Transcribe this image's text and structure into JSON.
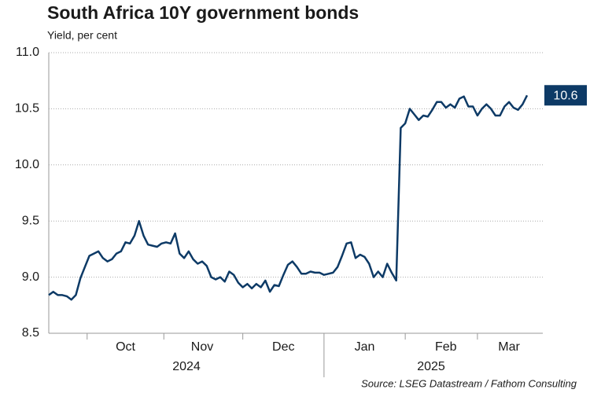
{
  "chart_data": {
    "type": "line",
    "title": "South Africa 10Y government bonds",
    "subtitle": "Yield, per cent",
    "source": "Source: LSEG Datastream / Fathom Consulting",
    "year_labels": [
      "2024",
      "2025"
    ],
    "categories": [
      null,
      null,
      null,
      null,
      null,
      null,
      null,
      null,
      null,
      null,
      null,
      null,
      null,
      null,
      null,
      null,
      null,
      "Oct",
      null,
      null,
      null,
      null,
      null,
      null,
      null,
      null,
      null,
      null,
      null,
      null,
      null,
      null,
      null,
      null,
      "Nov",
      null,
      null,
      null,
      null,
      null,
      null,
      null,
      null,
      null,
      null,
      null,
      null,
      null,
      null,
      null,
      null,
      null,
      "Dec",
      null,
      null,
      null,
      null,
      null,
      null,
      null,
      null,
      null,
      null,
      null,
      null,
      null,
      null,
      null,
      null,
      null,
      "Jan",
      null,
      null,
      null,
      null,
      null,
      null,
      null,
      null,
      null,
      null,
      null,
      null,
      null,
      null,
      null,
      null,
      null,
      "Feb",
      null,
      null,
      null,
      null,
      null,
      null,
      null,
      null,
      null,
      null,
      null,
      null,
      null,
      "Mar",
      null,
      null,
      null,
      null
    ],
    "series": [
      {
        "name": "South Africa 10Y",
        "color": "#0d3a66",
        "values": [
          8.84,
          8.87,
          8.84,
          8.84,
          8.83,
          8.8,
          8.84,
          8.99,
          9.09,
          9.19,
          9.21,
          9.23,
          9.17,
          9.14,
          9.16,
          9.21,
          9.23,
          9.31,
          9.3,
          9.37,
          9.5,
          9.37,
          9.29,
          9.28,
          9.27,
          9.3,
          9.31,
          9.3,
          9.39,
          9.21,
          9.17,
          9.23,
          9.16,
          9.12,
          9.14,
          9.1,
          9.0,
          8.98,
          9.0,
          8.96,
          9.05,
          9.02,
          8.95,
          8.91,
          8.94,
          8.9,
          8.94,
          8.91,
          8.97,
          8.87,
          8.93,
          8.92,
          9.02,
          9.11,
          9.14,
          9.09,
          9.03,
          9.03,
          9.05,
          9.04,
          9.04,
          9.02,
          9.03,
          9.04,
          9.09,
          9.19,
          9.3,
          9.31,
          9.17,
          9.2,
          9.18,
          9.12,
          9.0,
          9.05,
          9.0,
          9.12,
          9.04,
          8.97,
          10.33,
          10.37,
          10.5,
          10.45,
          10.4,
          10.44,
          10.43,
          10.49,
          10.56,
          10.56,
          10.51,
          10.54,
          10.51,
          10.59,
          10.61,
          10.52,
          10.52,
          10.44,
          10.5,
          10.54,
          10.5,
          10.44,
          10.44,
          10.52,
          10.56,
          10.51,
          10.49,
          10.54,
          10.62
        ],
        "value_labels": [
          null,
          null,
          null,
          null,
          null,
          null,
          null,
          null,
          null,
          null,
          null,
          null,
          null,
          null,
          null,
          null,
          null,
          null,
          null,
          null,
          null,
          null,
          null,
          null,
          null,
          null,
          null,
          null,
          null,
          null,
          null,
          null,
          null,
          null,
          null,
          null,
          null,
          null,
          null,
          null,
          null,
          null,
          null,
          null,
          null,
          null,
          null,
          null,
          null,
          null,
          null,
          null,
          null,
          null,
          null,
          null,
          null,
          null,
          null,
          null,
          null,
          null,
          null,
          null,
          null,
          null,
          null,
          null,
          null,
          null,
          null,
          null,
          null,
          null,
          null,
          null,
          null,
          null,
          null,
          null,
          null,
          null,
          null,
          null,
          null,
          null,
          null,
          null,
          null,
          null,
          null,
          null,
          null,
          null,
          null,
          null,
          null,
          null,
          null,
          null,
          null,
          null,
          null,
          null,
          null,
          null,
          "10.6"
        ]
      }
    ],
    "ylim": [
      8.5,
      11
    ],
    "yticks": [
      8.5,
      {
        "value": 9,
        "label": "9.0"
      },
      9.5,
      {
        "value": 10,
        "label": "10.0"
      },
      10.5,
      {
        "value": 11,
        "label": "11.0"
      }
    ],
    "grid": true
  }
}
